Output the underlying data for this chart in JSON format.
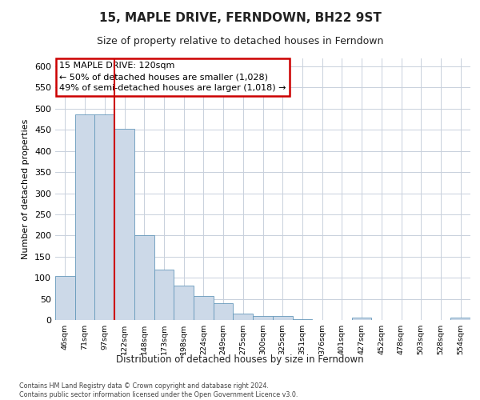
{
  "title": "15, MAPLE DRIVE, FERNDOWN, BH22 9ST",
  "subtitle": "Size of property relative to detached houses in Ferndown",
  "xlabel": "Distribution of detached houses by size in Ferndown",
  "ylabel": "Number of detached properties",
  "categories": [
    "46sqm",
    "71sqm",
    "97sqm",
    "122sqm",
    "148sqm",
    "173sqm",
    "198sqm",
    "224sqm",
    "249sqm",
    "275sqm",
    "300sqm",
    "325sqm",
    "351sqm",
    "376sqm",
    "401sqm",
    "427sqm",
    "452sqm",
    "478sqm",
    "503sqm",
    "528sqm",
    "554sqm"
  ],
  "values": [
    104,
    487,
    487,
    452,
    201,
    120,
    82,
    56,
    40,
    15,
    9,
    10,
    2,
    0,
    0,
    5,
    0,
    0,
    0,
    0,
    6
  ],
  "bar_color": "#ccd9e8",
  "bar_edge_color": "#6699bb",
  "vline_x_index": 3,
  "vline_color": "#cc0000",
  "annotation_text": "15 MAPLE DRIVE: 120sqm\n← 50% of detached houses are smaller (1,028)\n49% of semi-detached houses are larger (1,018) →",
  "annotation_box_color": "#ffffff",
  "annotation_box_edge": "#cc0000",
  "grid_color": "#c8d0dc",
  "ylim": [
    0,
    620
  ],
  "yticks": [
    0,
    50,
    100,
    150,
    200,
    250,
    300,
    350,
    400,
    450,
    500,
    550,
    600
  ],
  "footer_line1": "Contains HM Land Registry data © Crown copyright and database right 2024.",
  "footer_line2": "Contains public sector information licensed under the Open Government Licence v3.0.",
  "background_color": "#ffffff",
  "title_fontsize": 11,
  "subtitle_fontsize": 9
}
